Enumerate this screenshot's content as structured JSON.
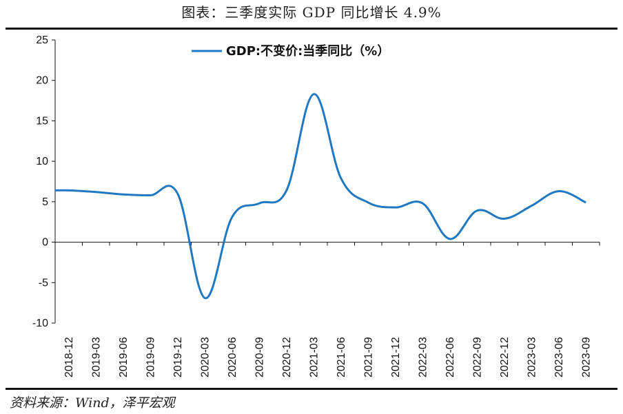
{
  "header": {
    "title": "图表：三季度实际 GDP 同比增长 4.9%"
  },
  "footer": {
    "source": "资料来源：Wind，泽平宏观"
  },
  "colors": {
    "line": "#1f78c1",
    "axis": "#111111"
  },
  "chart_data": {
    "type": "line",
    "title": "",
    "xlabel": "",
    "ylabel": "",
    "ylim": [
      -10,
      25
    ],
    "yticks": [
      -10,
      -5,
      0,
      5,
      10,
      15,
      20,
      25
    ],
    "grid": false,
    "legend_position": "top-center",
    "categories": [
      "2018-12",
      "2019-03",
      "2019-06",
      "2019-09",
      "2019-12",
      "2020-03",
      "2020-06",
      "2020-09",
      "2020-12",
      "2021-03",
      "2021-06",
      "2021-09",
      "2021-12",
      "2022-03",
      "2022-06",
      "2022-09",
      "2022-12",
      "2023-03",
      "2023-06",
      "2023-09"
    ],
    "series": [
      {
        "name": "GDP:不变价:当季同比（%）",
        "values": [
          6.4,
          6.2,
          5.9,
          5.8,
          6.0,
          -6.9,
          3.1,
          4.8,
          6.4,
          18.3,
          7.9,
          4.9,
          4.3,
          4.8,
          0.4,
          3.9,
          2.9,
          4.5,
          6.3,
          4.9
        ]
      }
    ]
  }
}
